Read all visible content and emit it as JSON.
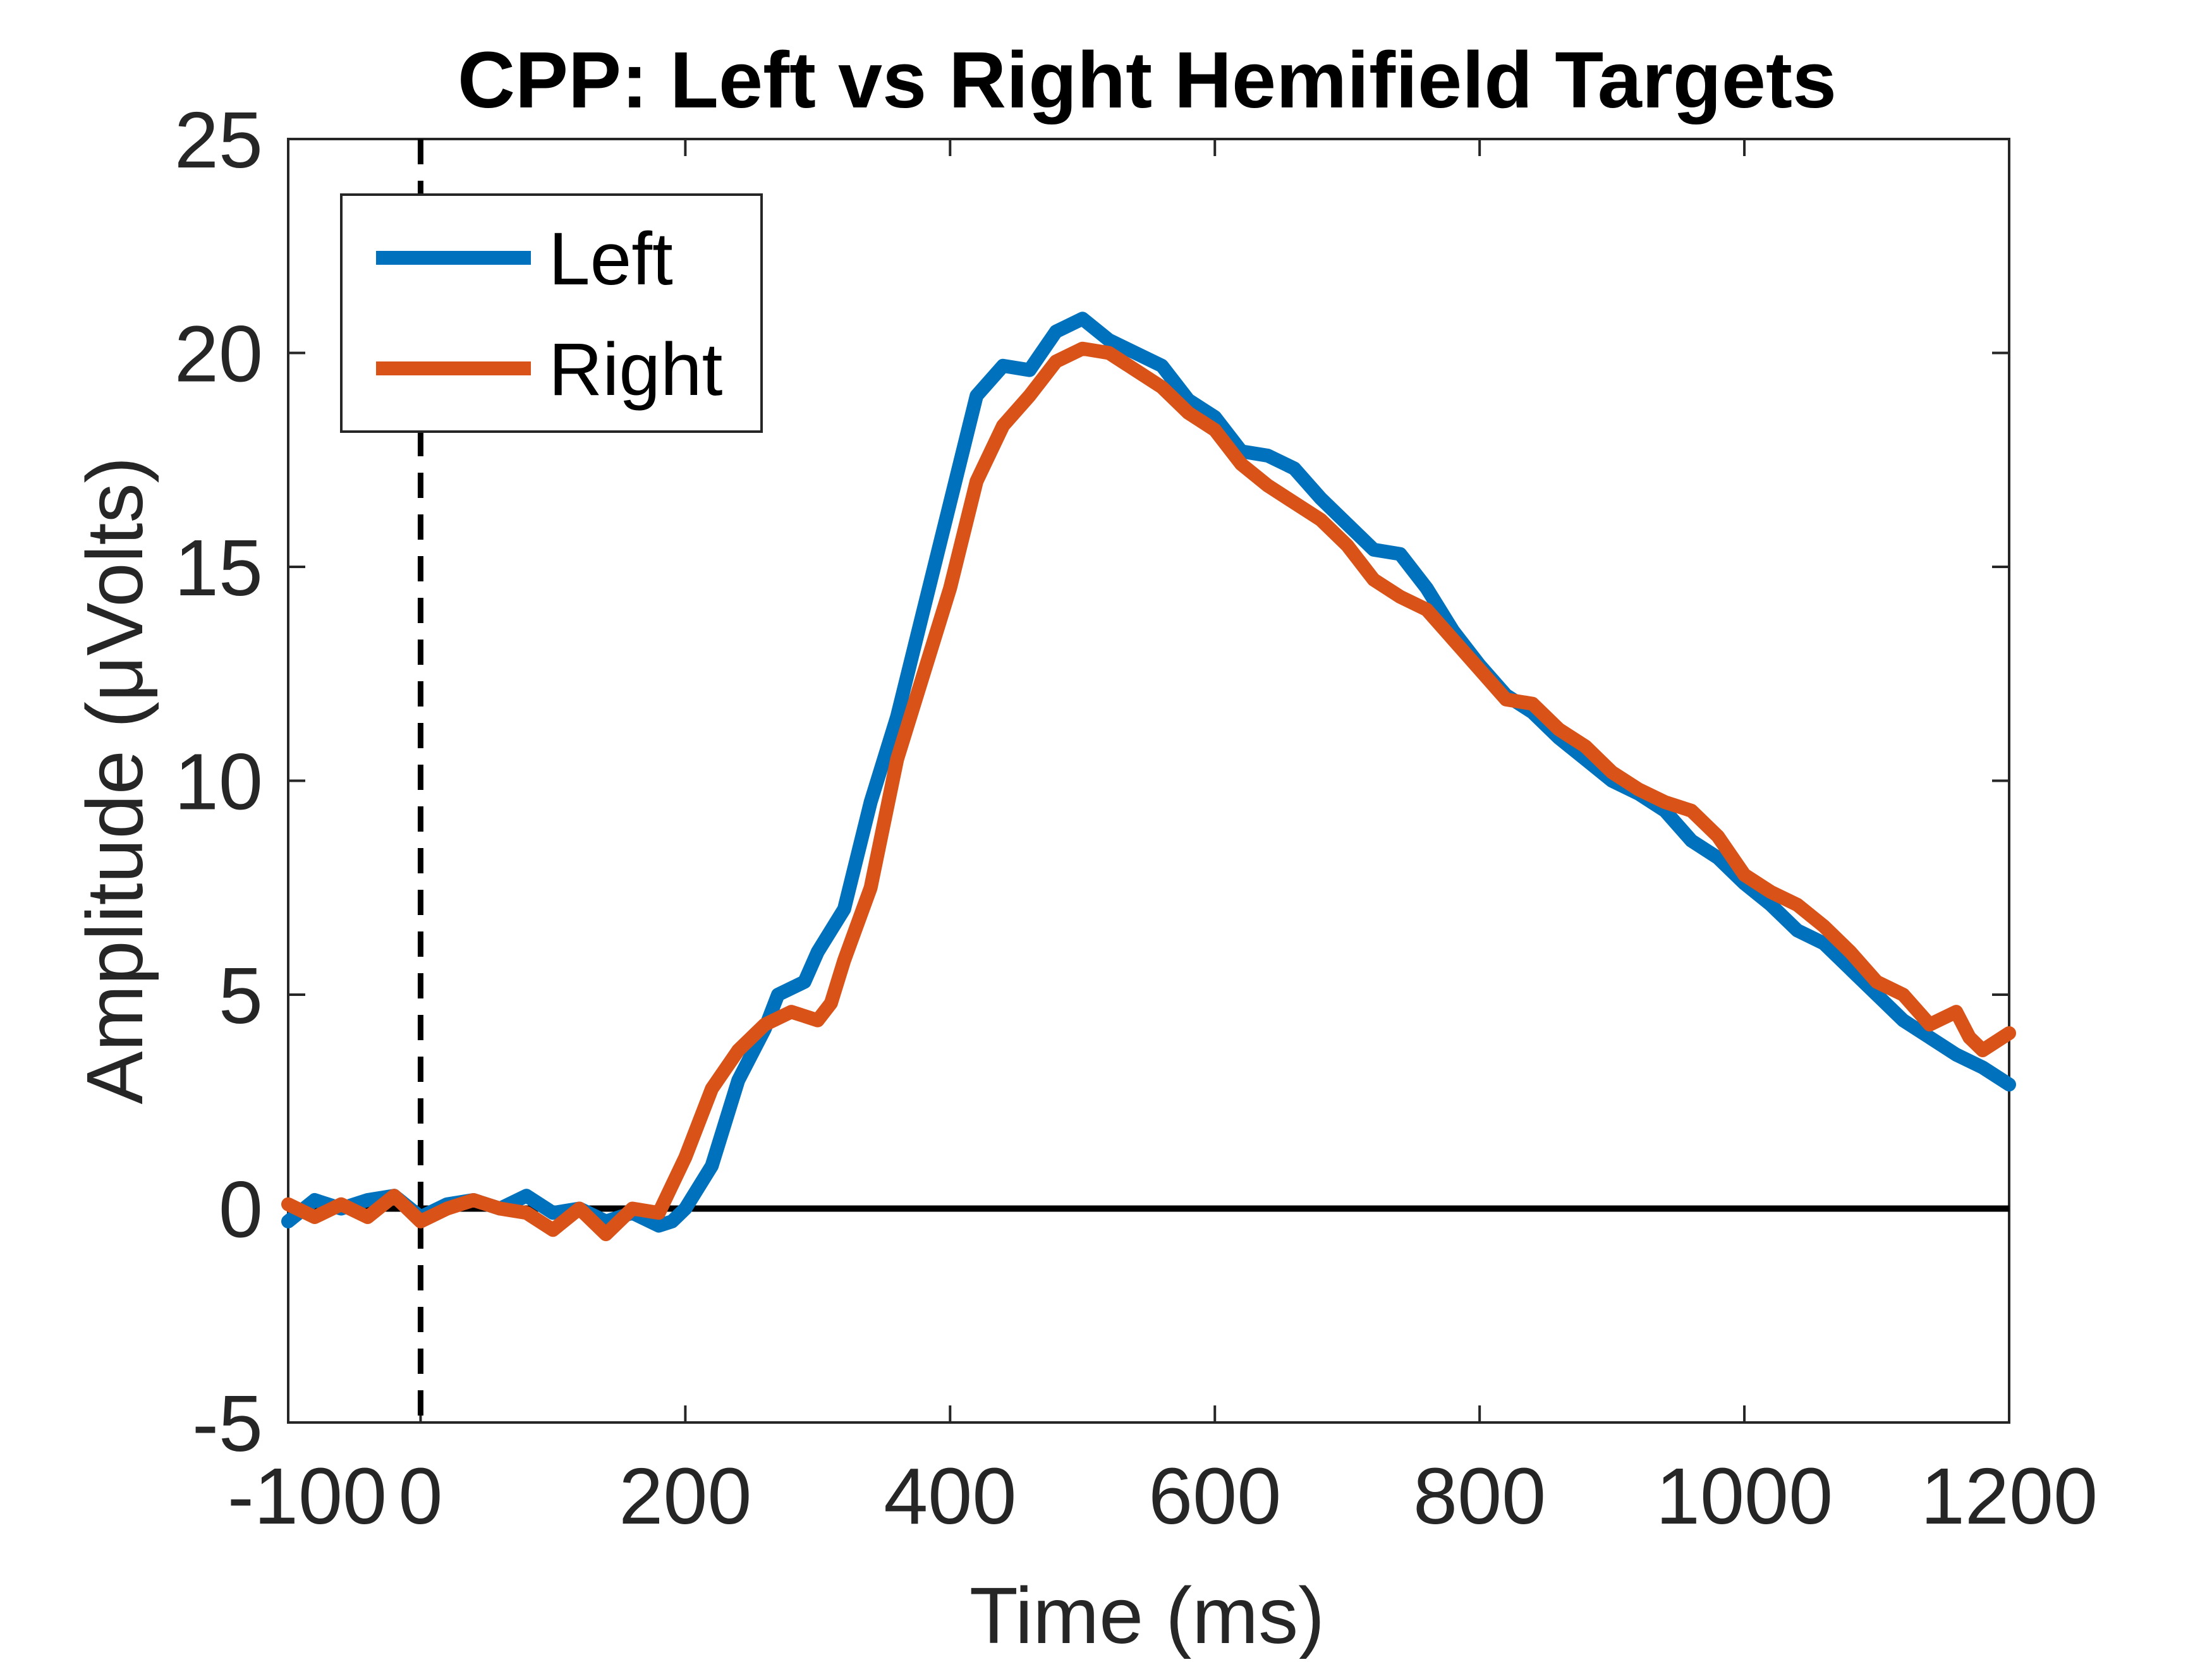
{
  "chart_data": {
    "type": "line",
    "title": "CPP: Left vs Right Hemifield Targets",
    "xlabel": "Time (ms)",
    "ylabel": "Amplitude (μVolts)",
    "xlim": [
      -100,
      1200
    ],
    "ylim": [
      -5,
      25
    ],
    "x_ticks": [
      -100,
      0,
      200,
      400,
      600,
      800,
      1000,
      1200
    ],
    "y_ticks": [
      -5,
      0,
      5,
      10,
      15,
      20,
      25
    ],
    "grid": false,
    "legend_position": "top-left",
    "reference_lines": [
      {
        "kind": "horizontal",
        "value": 0,
        "style": "solid",
        "color": "#000000"
      },
      {
        "kind": "vertical",
        "value": 0,
        "style": "dashed",
        "color": "#000000"
      }
    ],
    "series": [
      {
        "name": "Left",
        "color": "#0072BD",
        "points": [
          [
            -100,
            -0.3
          ],
          [
            -80,
            0.2
          ],
          [
            -60,
            0.0
          ],
          [
            -40,
            0.2
          ],
          [
            -20,
            0.3
          ],
          [
            0,
            -0.2
          ],
          [
            20,
            0.1
          ],
          [
            40,
            0.2
          ],
          [
            60,
            0.0
          ],
          [
            80,
            0.3
          ],
          [
            100,
            -0.1
          ],
          [
            120,
            0.0
          ],
          [
            140,
            -0.3
          ],
          [
            160,
            -0.1
          ],
          [
            180,
            -0.4
          ],
          [
            190,
            -0.3
          ],
          [
            200,
            0.0
          ],
          [
            220,
            1.0
          ],
          [
            240,
            3.0
          ],
          [
            260,
            4.2
          ],
          [
            270,
            5.0
          ],
          [
            290,
            5.3
          ],
          [
            300,
            6.0
          ],
          [
            320,
            7.0
          ],
          [
            340,
            9.5
          ],
          [
            360,
            11.5
          ],
          [
            380,
            14.0
          ],
          [
            400,
            16.5
          ],
          [
            420,
            19.0
          ],
          [
            440,
            19.7
          ],
          [
            460,
            19.6
          ],
          [
            480,
            20.5
          ],
          [
            500,
            20.8
          ],
          [
            520,
            20.3
          ],
          [
            540,
            20.0
          ],
          [
            560,
            19.7
          ],
          [
            580,
            18.9
          ],
          [
            600,
            18.5
          ],
          [
            620,
            17.7
          ],
          [
            640,
            17.6
          ],
          [
            660,
            17.3
          ],
          [
            680,
            16.6
          ],
          [
            700,
            16.0
          ],
          [
            720,
            15.4
          ],
          [
            740,
            15.3
          ],
          [
            760,
            14.5
          ],
          [
            780,
            13.5
          ],
          [
            800,
            12.7
          ],
          [
            820,
            12.0
          ],
          [
            840,
            11.6
          ],
          [
            860,
            11.0
          ],
          [
            880,
            10.5
          ],
          [
            900,
            10.0
          ],
          [
            920,
            9.7
          ],
          [
            940,
            9.3
          ],
          [
            960,
            8.6
          ],
          [
            980,
            8.2
          ],
          [
            1000,
            7.6
          ],
          [
            1020,
            7.1
          ],
          [
            1040,
            6.5
          ],
          [
            1060,
            6.2
          ],
          [
            1080,
            5.6
          ],
          [
            1100,
            5.0
          ],
          [
            1120,
            4.4
          ],
          [
            1140,
            4.0
          ],
          [
            1160,
            3.6
          ],
          [
            1180,
            3.3
          ],
          [
            1200,
            2.9
          ]
        ]
      },
      {
        "name": "Right",
        "color": "#D95319",
        "points": [
          [
            -100,
            0.1
          ],
          [
            -80,
            -0.2
          ],
          [
            -60,
            0.1
          ],
          [
            -40,
            -0.2
          ],
          [
            -20,
            0.3
          ],
          [
            0,
            -0.3
          ],
          [
            20,
            0.0
          ],
          [
            40,
            0.2
          ],
          [
            60,
            0.0
          ],
          [
            80,
            -0.1
          ],
          [
            100,
            -0.5
          ],
          [
            120,
            0.0
          ],
          [
            140,
            -0.6
          ],
          [
            160,
            0.0
          ],
          [
            180,
            -0.1
          ],
          [
            200,
            1.2
          ],
          [
            220,
            2.8
          ],
          [
            240,
            3.7
          ],
          [
            260,
            4.3
          ],
          [
            280,
            4.6
          ],
          [
            300,
            4.4
          ],
          [
            310,
            4.8
          ],
          [
            320,
            5.8
          ],
          [
            340,
            7.5
          ],
          [
            360,
            10.5
          ],
          [
            380,
            12.5
          ],
          [
            400,
            14.5
          ],
          [
            420,
            17.0
          ],
          [
            440,
            18.3
          ],
          [
            460,
            19.0
          ],
          [
            480,
            19.8
          ],
          [
            500,
            20.1
          ],
          [
            520,
            20.0
          ],
          [
            540,
            19.6
          ],
          [
            560,
            19.2
          ],
          [
            580,
            18.6
          ],
          [
            600,
            18.2
          ],
          [
            620,
            17.4
          ],
          [
            640,
            16.9
          ],
          [
            660,
            16.5
          ],
          [
            680,
            16.1
          ],
          [
            700,
            15.5
          ],
          [
            720,
            14.7
          ],
          [
            740,
            14.3
          ],
          [
            760,
            14.0
          ],
          [
            780,
            13.3
          ],
          [
            800,
            12.6
          ],
          [
            820,
            11.9
          ],
          [
            840,
            11.8
          ],
          [
            860,
            11.2
          ],
          [
            880,
            10.8
          ],
          [
            900,
            10.2
          ],
          [
            920,
            9.8
          ],
          [
            940,
            9.5
          ],
          [
            960,
            9.3
          ],
          [
            980,
            8.7
          ],
          [
            1000,
            7.8
          ],
          [
            1020,
            7.4
          ],
          [
            1040,
            7.1
          ],
          [
            1060,
            6.6
          ],
          [
            1080,
            6.0
          ],
          [
            1100,
            5.3
          ],
          [
            1120,
            5.0
          ],
          [
            1140,
            4.3
          ],
          [
            1160,
            4.6
          ],
          [
            1170,
            4.0
          ],
          [
            1180,
            3.7
          ],
          [
            1200,
            4.1
          ]
        ]
      }
    ]
  }
}
